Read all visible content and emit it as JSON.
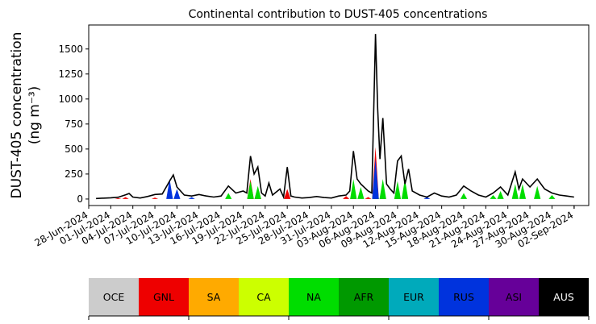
{
  "chart_data": {
    "type": "area",
    "title": "Continental contribution to DUST-405 concentrations",
    "ylabel_line1": "DUST-405 concentration",
    "ylabel_line2": "(ng m⁻³)",
    "xlabel": "",
    "ylim": [
      -65,
      1740
    ],
    "xlim": [
      "2024-06-28",
      "2024-09-04"
    ],
    "yticks": [
      0,
      250,
      500,
      750,
      1000,
      1250,
      1500
    ],
    "xticks": [
      "28-Jun-2024",
      "01-Jul-2024",
      "04-Jul-2024",
      "07-Jul-2024",
      "10-Jul-2024",
      "13-Jul-2024",
      "16-Jul-2024",
      "19-Jul-2024",
      "22-Jul-2024",
      "25-Jul-2024",
      "28-Jul-2024",
      "31-Jul-2024",
      "03-Aug-2024",
      "06-Aug-2024",
      "09-Aug-2024",
      "12-Aug-2024",
      "15-Aug-2024",
      "18-Aug-2024",
      "21-Aug-2024",
      "24-Aug-2024",
      "27-Aug-2024",
      "30-Aug-2024",
      "02-Sep-2024"
    ],
    "grid": false,
    "legend": [
      {
        "label": "OCE",
        "color": "#cccccc",
        "text_color": "#000000"
      },
      {
        "label": "GNL",
        "color": "#ee0000",
        "text_color": "#000000"
      },
      {
        "label": "SA",
        "color": "#ffaa00",
        "text_color": "#000000"
      },
      {
        "label": "CA",
        "color": "#ccff00",
        "text_color": "#000000"
      },
      {
        "label": "NA",
        "color": "#00dd00",
        "text_color": "#000000"
      },
      {
        "label": "AFR",
        "color": "#009900",
        "text_color": "#000000"
      },
      {
        "label": "EUR",
        "color": "#00aabb",
        "text_color": "#000000"
      },
      {
        "label": "RUS",
        "color": "#0033dd",
        "text_color": "#000000"
      },
      {
        "label": "ASI",
        "color": "#660099",
        "text_color": "#000000"
      },
      {
        "label": "AUS",
        "color": "#000000",
        "text_color": "#ffffff"
      }
    ],
    "total_series": {
      "name": "total",
      "points": [
        [
          "2024-06-29",
          5
        ],
        [
          "2024-07-01",
          12
        ],
        [
          "2024-07-02",
          18
        ],
        [
          "2024-07-03",
          42
        ],
        [
          "2024-07-03.5",
          55
        ],
        [
          "2024-07-04",
          20
        ],
        [
          "2024-07-05",
          10
        ],
        [
          "2024-07-06",
          25
        ],
        [
          "2024-07-07",
          45
        ],
        [
          "2024-07-08",
          50
        ],
        [
          "2024-07-09",
          180
        ],
        [
          "2024-07-09.5",
          240
        ],
        [
          "2024-07-10",
          120
        ],
        [
          "2024-07-11",
          40
        ],
        [
          "2024-07-12",
          30
        ],
        [
          "2024-07-13",
          45
        ],
        [
          "2024-07-14",
          30
        ],
        [
          "2024-07-15",
          20
        ],
        [
          "2024-07-16",
          30
        ],
        [
          "2024-07-17",
          130
        ],
        [
          "2024-07-18",
          60
        ],
        [
          "2024-07-19",
          80
        ],
        [
          "2024-07-19.5",
          60
        ],
        [
          "2024-07-20",
          430
        ],
        [
          "2024-07-20.5",
          250
        ],
        [
          "2024-07-21",
          320
        ],
        [
          "2024-07-21.5",
          60
        ],
        [
          "2024-07-22",
          30
        ],
        [
          "2024-07-22.5",
          160
        ],
        [
          "2024-07-23",
          40
        ],
        [
          "2024-07-24",
          100
        ],
        [
          "2024-07-24.5",
          20
        ],
        [
          "2024-07-25",
          320
        ],
        [
          "2024-07-25.5",
          30
        ],
        [
          "2024-07-26",
          20
        ],
        [
          "2024-07-27",
          10
        ],
        [
          "2024-07-28",
          15
        ],
        [
          "2024-07-29",
          25
        ],
        [
          "2024-07-30",
          15
        ],
        [
          "2024-07-31",
          10
        ],
        [
          "2024-08-01",
          30
        ],
        [
          "2024-08-02",
          40
        ],
        [
          "2024-08-02.5",
          80
        ],
        [
          "2024-08-03",
          480
        ],
        [
          "2024-08-03.5",
          200
        ],
        [
          "2024-08-04",
          150
        ],
        [
          "2024-08-05",
          80
        ],
        [
          "2024-08-05.5",
          60
        ],
        [
          "2024-08-06",
          1650
        ],
        [
          "2024-08-06.3",
          900
        ],
        [
          "2024-08-06.6",
          400
        ],
        [
          "2024-08-07",
          810
        ],
        [
          "2024-08-07.5",
          150
        ],
        [
          "2024-08-08",
          100
        ],
        [
          "2024-08-08.5",
          60
        ],
        [
          "2024-08-09",
          380
        ],
        [
          "2024-08-09.5",
          430
        ],
        [
          "2024-08-10",
          150
        ],
        [
          "2024-08-10.5",
          300
        ],
        [
          "2024-08-11",
          80
        ],
        [
          "2024-08-12",
          40
        ],
        [
          "2024-08-13",
          20
        ],
        [
          "2024-08-14",
          60
        ],
        [
          "2024-08-15",
          30
        ],
        [
          "2024-08-16",
          20
        ],
        [
          "2024-08-17",
          40
        ],
        [
          "2024-08-18",
          130
        ],
        [
          "2024-08-19",
          80
        ],
        [
          "2024-08-20",
          40
        ],
        [
          "2024-08-21",
          20
        ],
        [
          "2024-08-22",
          60
        ],
        [
          "2024-08-23",
          120
        ],
        [
          "2024-08-24",
          40
        ],
        [
          "2024-08-25",
          270
        ],
        [
          "2024-08-25.5",
          100
        ],
        [
          "2024-08-26",
          200
        ],
        [
          "2024-08-27",
          120
        ],
        [
          "2024-08-28",
          200
        ],
        [
          "2024-08-29",
          100
        ],
        [
          "2024-08-30",
          60
        ],
        [
          "2024-08-31",
          40
        ],
        [
          "2024-09-01",
          30
        ],
        [
          "2024-09-02",
          20
        ]
      ]
    },
    "components": [
      {
        "name": "GNL",
        "points": [
          [
            "2024-07-02",
            10
          ],
          [
            "2024-07-03",
            20
          ],
          [
            "2024-07-07",
            15
          ],
          [
            "2024-07-20",
            200
          ],
          [
            "2024-07-21",
            120
          ],
          [
            "2024-07-25",
            100
          ],
          [
            "2024-08-02",
            30
          ],
          [
            "2024-08-03",
            30
          ],
          [
            "2024-08-05",
            20
          ],
          [
            "2024-08-06",
            520
          ],
          [
            "2024-08-07",
            30
          ],
          [
            "2024-08-09",
            20
          ]
        ]
      },
      {
        "name": "NA",
        "points": [
          [
            "2024-07-17",
            60
          ],
          [
            "2024-07-20",
            180
          ],
          [
            "2024-07-21",
            130
          ],
          [
            "2024-08-03",
            200
          ],
          [
            "2024-08-04",
            120
          ],
          [
            "2024-08-06",
            300
          ],
          [
            "2024-08-07",
            200
          ],
          [
            "2024-08-09",
            180
          ],
          [
            "2024-08-10",
            200
          ],
          [
            "2024-08-18",
            60
          ],
          [
            "2024-08-22",
            40
          ],
          [
            "2024-08-23",
            80
          ],
          [
            "2024-08-25",
            150
          ],
          [
            "2024-08-26",
            150
          ],
          [
            "2024-08-28",
            130
          ],
          [
            "2024-08-30",
            40
          ]
        ]
      },
      {
        "name": "RUS",
        "points": [
          [
            "2024-07-09",
            200
          ],
          [
            "2024-07-10",
            100
          ],
          [
            "2024-07-12",
            20
          ],
          [
            "2024-08-06",
            400
          ],
          [
            "2024-08-13",
            20
          ]
        ]
      }
    ]
  }
}
